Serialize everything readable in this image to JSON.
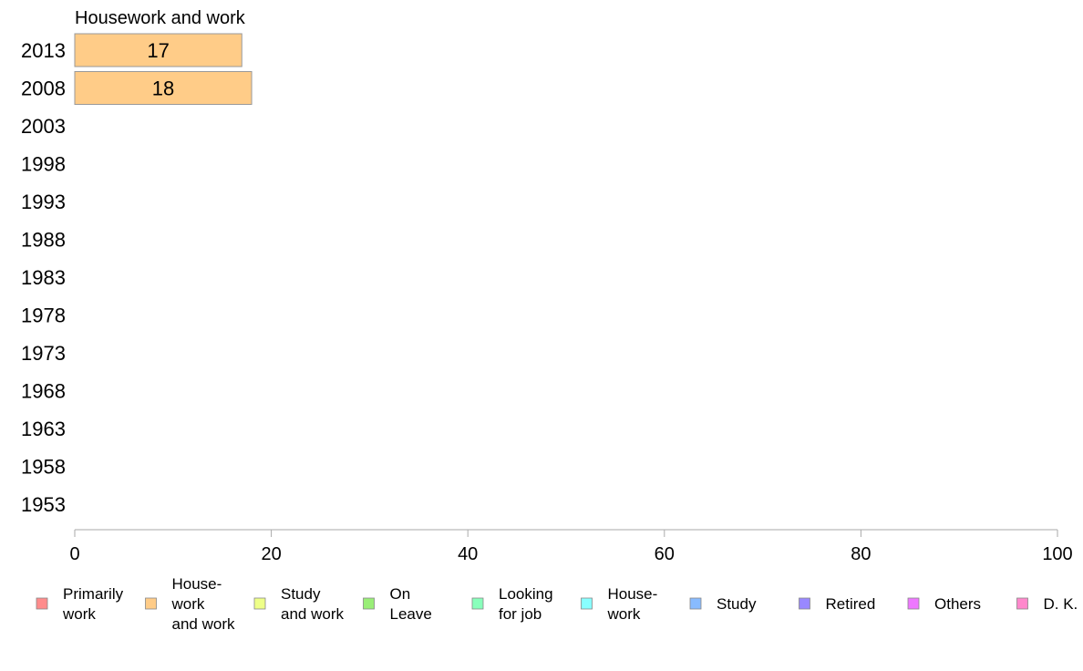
{
  "chart_data": {
    "type": "bar",
    "orientation": "horizontal",
    "title": "Housework and work",
    "categories": [
      "2013",
      "2008",
      "2003",
      "1998",
      "1993",
      "1988",
      "1983",
      "1978",
      "1973",
      "1968",
      "1963",
      "1958",
      "1953"
    ],
    "series": [
      {
        "name": "Housework and work",
        "color": "#ffcc88",
        "values": [
          17,
          18,
          null,
          null,
          null,
          null,
          null,
          null,
          null,
          null,
          null,
          null,
          null
        ]
      }
    ],
    "xlim": [
      0,
      100
    ],
    "xticks": [
      0,
      20,
      40,
      60,
      80,
      100
    ],
    "grid": false,
    "legend_position": "bottom",
    "legend": [
      {
        "lines": [
          "Primarily",
          "work"
        ],
        "color": "#ff8c8c"
      },
      {
        "lines": [
          "House-",
          "work",
          "and work"
        ],
        "color": "#ffcc88"
      },
      {
        "lines": [
          "Study",
          "and work"
        ],
        "color": "#eeff88"
      },
      {
        "lines": [
          "On",
          "Leave"
        ],
        "color": "#99ee77"
      },
      {
        "lines": [
          "Looking",
          "for job"
        ],
        "color": "#88ffbb"
      },
      {
        "lines": [
          "House-",
          "work"
        ],
        "color": "#88ffff"
      },
      {
        "lines": [
          "Study"
        ],
        "color": "#88bbff"
      },
      {
        "lines": [
          "Retired"
        ],
        "color": "#9988ff"
      },
      {
        "lines": [
          "Others"
        ],
        "color": "#ee77ff"
      },
      {
        "lines": [
          "D. K."
        ],
        "color": "#ff88cc"
      }
    ]
  }
}
